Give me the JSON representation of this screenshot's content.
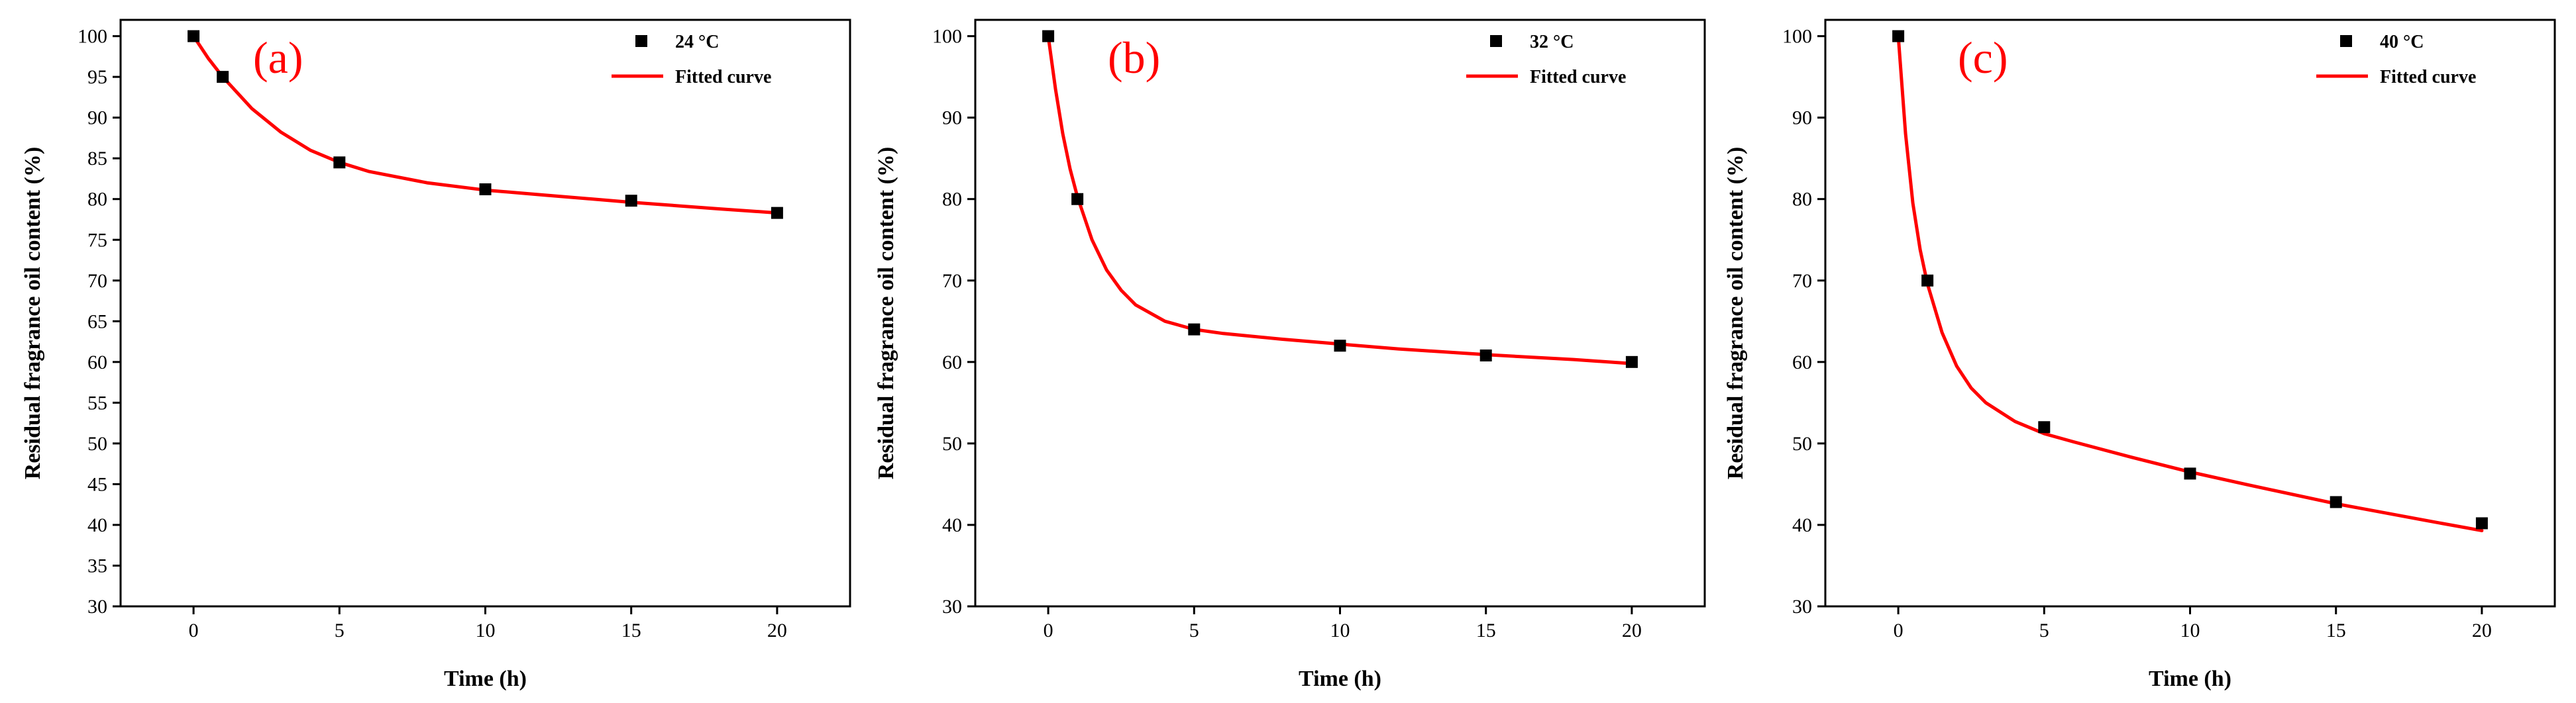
{
  "figure": {
    "colors": {
      "fit": "#ff0000",
      "marker": "#000000",
      "panel_label": "#ff0000",
      "axis": "#000000"
    }
  },
  "chart_data": [
    {
      "type": "scatter",
      "panel_label": "(a)",
      "xlabel": "Time (h)",
      "ylabel": "Residual fragrance oil content (%)",
      "xlim": [
        -2.5,
        22.5
      ],
      "ylim": [
        30,
        102
      ],
      "xticks": [
        0,
        5,
        10,
        15,
        20
      ],
      "xtick_labels": [
        "0",
        "5",
        "10",
        "15",
        "20"
      ],
      "yticks": [
        30,
        35,
        40,
        45,
        50,
        55,
        60,
        65,
        70,
        75,
        80,
        85,
        90,
        95,
        100
      ],
      "ytick_labels": [
        "30",
        "35",
        "40",
        "45",
        "50",
        "55",
        "60",
        "65",
        "70",
        "75",
        "80",
        "85",
        "90",
        "95",
        "100"
      ],
      "legend": {
        "position": "top-right",
        "marker_label": "24 °C",
        "line_label": "Fitted curve"
      },
      "series": [
        {
          "name": "24 °C",
          "kind": "points",
          "x": [
            0,
            1,
            5,
            10,
            15,
            20
          ],
          "y": [
            100,
            95,
            84.5,
            81.2,
            79.8,
            78.3
          ]
        },
        {
          "name": "Fitted curve",
          "kind": "line",
          "x": [
            0,
            0.5,
            1,
            2,
            3,
            4,
            5,
            6,
            8,
            10,
            12,
            15,
            18,
            20
          ],
          "y": [
            100,
            97.3,
            95,
            91.1,
            88.2,
            86.0,
            84.5,
            83.4,
            82.0,
            81.1,
            80.5,
            79.6,
            78.8,
            78.3
          ]
        }
      ]
    },
    {
      "type": "scatter",
      "panel_label": "(b)",
      "xlabel": "Time (h)",
      "ylabel": "Residual fragrance oil content (%)",
      "xlim": [
        -2.5,
        22.5
      ],
      "ylim": [
        30,
        102
      ],
      "xticks": [
        0,
        5,
        10,
        15,
        20
      ],
      "xtick_labels": [
        "0",
        "5",
        "10",
        "15",
        "20"
      ],
      "yticks": [
        30,
        40,
        50,
        60,
        70,
        80,
        90,
        100
      ],
      "ytick_labels": [
        "30",
        "40",
        "50",
        "60",
        "70",
        "80",
        "90",
        "100"
      ],
      "legend": {
        "position": "top-right",
        "marker_label": "32 °C",
        "line_label": "Fitted curve"
      },
      "series": [
        {
          "name": "32 °C",
          "kind": "points",
          "x": [
            0,
            1,
            5,
            10,
            15,
            20
          ],
          "y": [
            100,
            80,
            64,
            62,
            60.8,
            60
          ]
        },
        {
          "name": "Fitted curve",
          "kind": "line",
          "x": [
            0,
            0.25,
            0.5,
            0.75,
            1,
            1.5,
            2,
            2.5,
            3,
            4,
            5,
            6,
            8,
            10,
            12,
            15,
            18,
            20
          ],
          "y": [
            100,
            93.5,
            88,
            83.7,
            80.3,
            75.0,
            71.3,
            68.8,
            67.0,
            65.0,
            64.0,
            63.5,
            62.8,
            62.2,
            61.6,
            60.9,
            60.3,
            59.8
          ]
        }
      ]
    },
    {
      "type": "scatter",
      "panel_label": "(c)",
      "xlabel": "Time (h)",
      "ylabel": "Residual fragrance oil content (%)",
      "xlim": [
        -2.5,
        22.5
      ],
      "ylim": [
        30,
        102
      ],
      "xticks": [
        0,
        5,
        10,
        15,
        20
      ],
      "xtick_labels": [
        "0",
        "5",
        "10",
        "15",
        "20"
      ],
      "yticks": [
        30,
        40,
        50,
        60,
        70,
        80,
        90,
        100
      ],
      "ytick_labels": [
        "30",
        "40",
        "50",
        "60",
        "70",
        "80",
        "90",
        "100"
      ],
      "legend": {
        "position": "top-right",
        "marker_label": "40 °C",
        "line_label": "Fitted curve"
      },
      "series": [
        {
          "name": "40 °C",
          "kind": "points",
          "x": [
            0,
            1,
            5,
            10,
            15,
            20
          ],
          "y": [
            100,
            70,
            52,
            46.3,
            42.8,
            40.2
          ]
        },
        {
          "name": "Fitted curve",
          "kind": "line",
          "x": [
            0,
            0.25,
            0.5,
            0.75,
            1,
            1.5,
            2,
            2.5,
            3,
            4,
            5,
            6,
            8,
            10,
            12,
            15,
            18,
            20
          ],
          "y": [
            100,
            88,
            79.5,
            73.8,
            69.6,
            63.6,
            59.5,
            56.8,
            55.0,
            52.7,
            51.2,
            50.2,
            48.3,
            46.5,
            44.9,
            42.6,
            40.6,
            39.3
          ]
        }
      ]
    }
  ]
}
